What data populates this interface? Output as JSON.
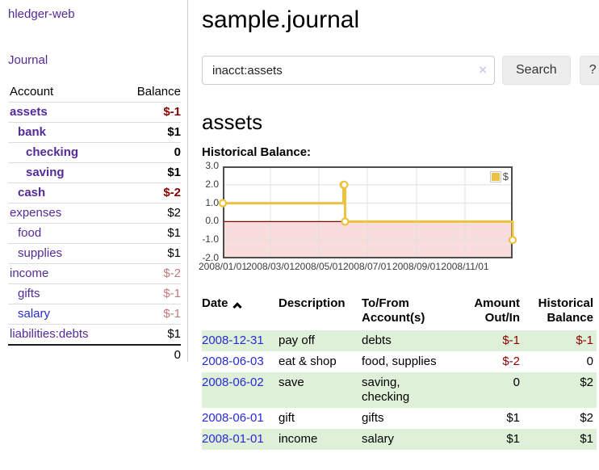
{
  "colors": {
    "accent": "#edc240",
    "negative": "#8b0000",
    "negative_soft": "#c07a7a",
    "link_purple": "#542a99",
    "link_blue": "#2a2ad2",
    "row_green": "#dff0d8",
    "negative_fill": "#f9dcdc",
    "zero_line": "#8b0000",
    "grid": "#e0e0e0",
    "plot_border": "#4d4d4d"
  },
  "app": {
    "title": "hledger-web"
  },
  "sidebar": {
    "journal_link": "Journal",
    "accounts_table": {
      "headers": {
        "account": "Account",
        "balance": "Balance"
      },
      "rows": [
        {
          "account": "assets",
          "depth": 1,
          "bold": true,
          "balance": "$-1",
          "negative": "strong",
          "link": "purple"
        },
        {
          "account": "bank",
          "depth": 2,
          "bold": true,
          "balance": "$1",
          "negative": null,
          "link": "purple"
        },
        {
          "account": "checking",
          "depth": 3,
          "bold": true,
          "balance": "0",
          "negative": null,
          "link": "purple"
        },
        {
          "account": "saving",
          "depth": 3,
          "bold": true,
          "balance": "$1",
          "negative": null,
          "link": "purple"
        },
        {
          "account": "cash",
          "depth": 2,
          "bold": true,
          "balance": "$-2",
          "negative": "strong",
          "link": "purple"
        },
        {
          "account": "expenses",
          "depth": 1,
          "bold": false,
          "balance": "$2",
          "negative": null,
          "link": "purple"
        },
        {
          "account": "food",
          "depth": 2,
          "bold": false,
          "balance": "$1",
          "negative": null,
          "link": "purple"
        },
        {
          "account": "supplies",
          "depth": 2,
          "bold": false,
          "balance": "$1",
          "negative": null,
          "link": "purple"
        },
        {
          "account": "income",
          "depth": 1,
          "bold": false,
          "balance": "$-2",
          "negative": "soft",
          "link": "purple"
        },
        {
          "account": "gifts",
          "depth": 2,
          "bold": false,
          "balance": "$-1",
          "negative": "soft",
          "link": "purple"
        },
        {
          "account": "salary",
          "depth": 2,
          "bold": false,
          "balance": "$-1",
          "negative": "soft",
          "link": "blue"
        },
        {
          "account": "liabilities:debts",
          "depth": 1,
          "bold": false,
          "balance": "$1",
          "negative": null,
          "link": "purple"
        }
      ],
      "total": "0"
    }
  },
  "main": {
    "title": "sample.journal",
    "search": {
      "value": "inacct:assets",
      "clear_icon": "×",
      "search_button": "Search",
      "help_button": "?"
    },
    "account_heading": "assets",
    "section_label": "Historical Balance:"
  },
  "chart_data": {
    "type": "line",
    "step": true,
    "title": "Historical Balance",
    "series": [
      {
        "name": "$",
        "points": [
          [
            "2008-01-01",
            1
          ],
          [
            "2008-06-01",
            2
          ],
          [
            "2008-06-02",
            2
          ],
          [
            "2008-06-03",
            0
          ],
          [
            "2008-12-31",
            -1
          ]
        ]
      }
    ],
    "x_range": [
      "2008-01-01",
      "2008-12-31"
    ],
    "x_ticks": [
      {
        "date": "2008-01-01",
        "label": "2008/01/01"
      },
      {
        "date": "2008-03-01",
        "label": "2008/03/01"
      },
      {
        "date": "2008-05-01",
        "label": "2008/05/01"
      },
      {
        "date": "2008-07-01",
        "label": "2008/07/01"
      },
      {
        "date": "2008-09-01",
        "label": "2008/09/01"
      },
      {
        "date": "2008-11-01",
        "label": "2008/11/01"
      }
    ],
    "y_ticks": [
      {
        "value": 3,
        "label": "3.0"
      },
      {
        "value": 2,
        "label": "2.0"
      },
      {
        "value": 1,
        "label": "1.0"
      },
      {
        "value": 0,
        "label": "0.0"
      },
      {
        "value": -1,
        "label": "-1.0"
      },
      {
        "value": -2,
        "label": "-2.0"
      }
    ],
    "ylim": [
      -2,
      3
    ],
    "grid": true,
    "legend_position": "top-right",
    "shaded_negative_region": true
  },
  "register": {
    "headers": [
      "Date",
      "Description",
      "To/From Account(s)",
      "Amount Out/In",
      "Historical Balance"
    ],
    "rows": [
      {
        "date": "2008-12-31",
        "description": "pay off",
        "accounts": "debts",
        "amount": "$-1",
        "amount_negative": true,
        "balance": "$-1",
        "balance_negative": true
      },
      {
        "date": "2008-06-03",
        "description": "eat & shop",
        "accounts": "food, supplies",
        "amount": "$-2",
        "amount_negative": true,
        "balance": "0",
        "balance_negative": false
      },
      {
        "date": "2008-06-02",
        "description": "save",
        "accounts": "saving, checking",
        "amount": "0",
        "amount_negative": false,
        "balance": "$2",
        "balance_negative": false
      },
      {
        "date": "2008-06-01",
        "description": "gift",
        "accounts": "gifts",
        "amount": "$1",
        "amount_negative": false,
        "balance": "$2",
        "balance_negative": false
      },
      {
        "date": "2008-01-01",
        "description": "income",
        "accounts": "salary",
        "amount": "$1",
        "amount_negative": false,
        "balance": "$1",
        "balance_negative": false
      }
    ]
  }
}
